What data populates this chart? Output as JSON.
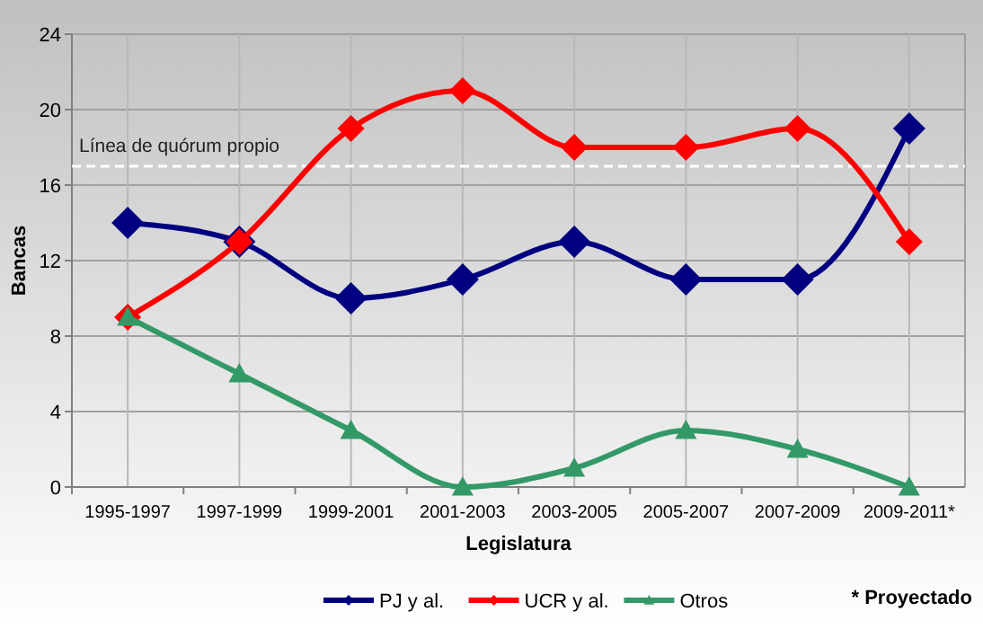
{
  "chart_data": {
    "type": "line",
    "xlabel": "Legislatura",
    "ylabel": "Bancas",
    "categories": [
      "1995-1997",
      "1997-1999",
      "1999-2001",
      "2001-2003",
      "2003-2005",
      "2005-2007",
      "2007-2009",
      "2009-2011*"
    ],
    "series": [
      {
        "name": "PJ y al.",
        "color": "#000080",
        "marker": "diamond",
        "values": [
          14,
          13,
          10,
          11,
          13,
          11,
          11,
          19
        ]
      },
      {
        "name": "UCR y al.",
        "color": "#ff0000",
        "marker": "diamond",
        "values": [
          9,
          13,
          19,
          21,
          18,
          18,
          19,
          13
        ]
      },
      {
        "name": "Otros",
        "color": "#339966",
        "marker": "triangle",
        "values": [
          9,
          6,
          3,
          0,
          1,
          3,
          2,
          0
        ]
      }
    ],
    "ylim": [
      0,
      24
    ],
    "yticks": [
      0,
      4,
      8,
      12,
      16,
      20,
      24
    ],
    "grid": true,
    "legend": "bottom",
    "ref_lines": [
      {
        "axis": "y",
        "value": 17,
        "label": "Línea de quórum propio",
        "color": "#ffffff",
        "line_style": "dashed"
      }
    ],
    "annotations": [
      "* Proyectado"
    ]
  }
}
